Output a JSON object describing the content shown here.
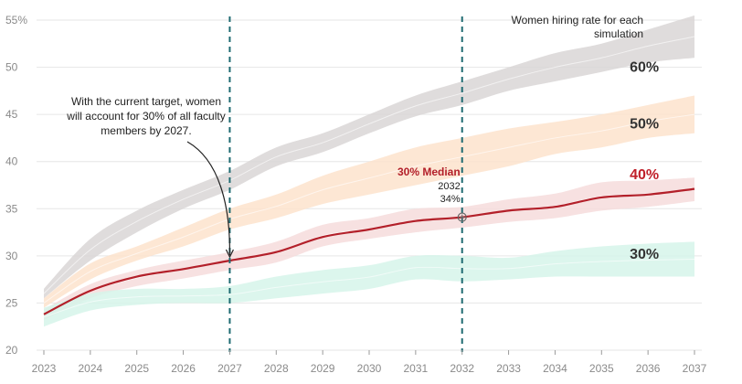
{
  "chart_data": {
    "type": "area",
    "title": "",
    "xlabel": "",
    "ylabel": "",
    "x": [
      2023,
      2024,
      2025,
      2026,
      2027,
      2028,
      2029,
      2030,
      2031,
      2032,
      2033,
      2034,
      2035,
      2036,
      2037
    ],
    "x_tick_labels": [
      "2023",
      "2024",
      "2025",
      "2026",
      "2027",
      "2028",
      "2029",
      "2030",
      "2031",
      "2032",
      "2033",
      "2034",
      "2035",
      "2036",
      "2037"
    ],
    "ylim": [
      20,
      55
    ],
    "y_ticks": [
      20,
      25,
      30,
      35,
      40,
      45,
      50,
      55
    ],
    "y_tick_labels": [
      "20",
      "25",
      "30",
      "35",
      "40",
      "45",
      "50",
      "55%"
    ],
    "grid": true,
    "legend_title": "Women hiring rate for each simulation",
    "series": [
      {
        "name": "60%",
        "color": "#d9d6d6",
        "label_color": "#333333",
        "low": [
          25.5,
          29.5,
          32.5,
          35.0,
          37.0,
          39.5,
          41.0,
          43.0,
          44.8,
          46.0,
          47.5,
          48.5,
          49.5,
          50.5,
          51.0
        ],
        "high": [
          26.5,
          31.8,
          34.8,
          37.0,
          39.0,
          41.5,
          43.0,
          45.0,
          47.0,
          48.5,
          50.0,
          51.5,
          52.5,
          54.0,
          55.5
        ],
        "label_at": [
          2036,
          50.0
        ]
      },
      {
        "name": "50%",
        "color": "#fde3cc",
        "label_color": "#333333",
        "low": [
          24.5,
          27.5,
          29.5,
          31.0,
          32.8,
          34.0,
          35.5,
          36.5,
          37.5,
          38.5,
          39.5,
          40.8,
          41.5,
          42.5,
          43.0
        ],
        "high": [
          25.5,
          29.2,
          31.0,
          33.0,
          35.0,
          36.5,
          38.5,
          40.0,
          41.5,
          42.5,
          43.5,
          44.2,
          45.0,
          46.0,
          47.0
        ],
        "label_at": [
          2036,
          44.0
        ]
      },
      {
        "name": "40%",
        "color": "#f6dcdc",
        "label_color": "#c0202a",
        "low": [
          23.2,
          25.5,
          26.8,
          27.6,
          28.5,
          29.3,
          31.0,
          31.8,
          32.5,
          33.0,
          33.6,
          34.0,
          34.8,
          35.2,
          35.8
        ],
        "high": [
          24.3,
          27.0,
          28.5,
          29.5,
          30.4,
          31.5,
          33.3,
          34.0,
          35.0,
          35.2,
          36.0,
          36.6,
          37.8,
          38.0,
          38.3
        ],
        "median": [
          23.8,
          26.3,
          27.8,
          28.6,
          29.5,
          30.4,
          32.0,
          32.8,
          33.7,
          34.1,
          34.8,
          35.2,
          36.2,
          36.5,
          37.1
        ],
        "label_at": [
          2036,
          38.6
        ]
      },
      {
        "name": "30%",
        "color": "#d6f5ea",
        "label_color": "#333333",
        "low": [
          22.5,
          24.2,
          24.8,
          25.0,
          25.0,
          25.5,
          26.0,
          26.5,
          27.5,
          27.3,
          27.5,
          27.8,
          27.8,
          27.8,
          27.8
        ],
        "high": [
          24.5,
          26.0,
          26.5,
          26.5,
          26.8,
          27.8,
          28.5,
          29.0,
          30.0,
          30.0,
          29.8,
          30.5,
          31.0,
          31.3,
          31.5
        ],
        "label_at": [
          2036,
          30.2
        ]
      }
    ],
    "vlines": [
      2027,
      2032
    ],
    "annotations": {
      "target_text": [
        "With the current target, women",
        "will account for 30% of all faculty",
        "members by 2027."
      ],
      "target_point": [
        2027,
        29.5
      ],
      "median_title": "30% Median",
      "median_year": "2032",
      "median_value": "34%",
      "median_point": [
        2032,
        34.1
      ]
    }
  },
  "colors": {
    "median_line": "#b3202a",
    "vline": "#1f6b72",
    "grid": "#e6e6e6",
    "axis": "#9a9a9a"
  }
}
